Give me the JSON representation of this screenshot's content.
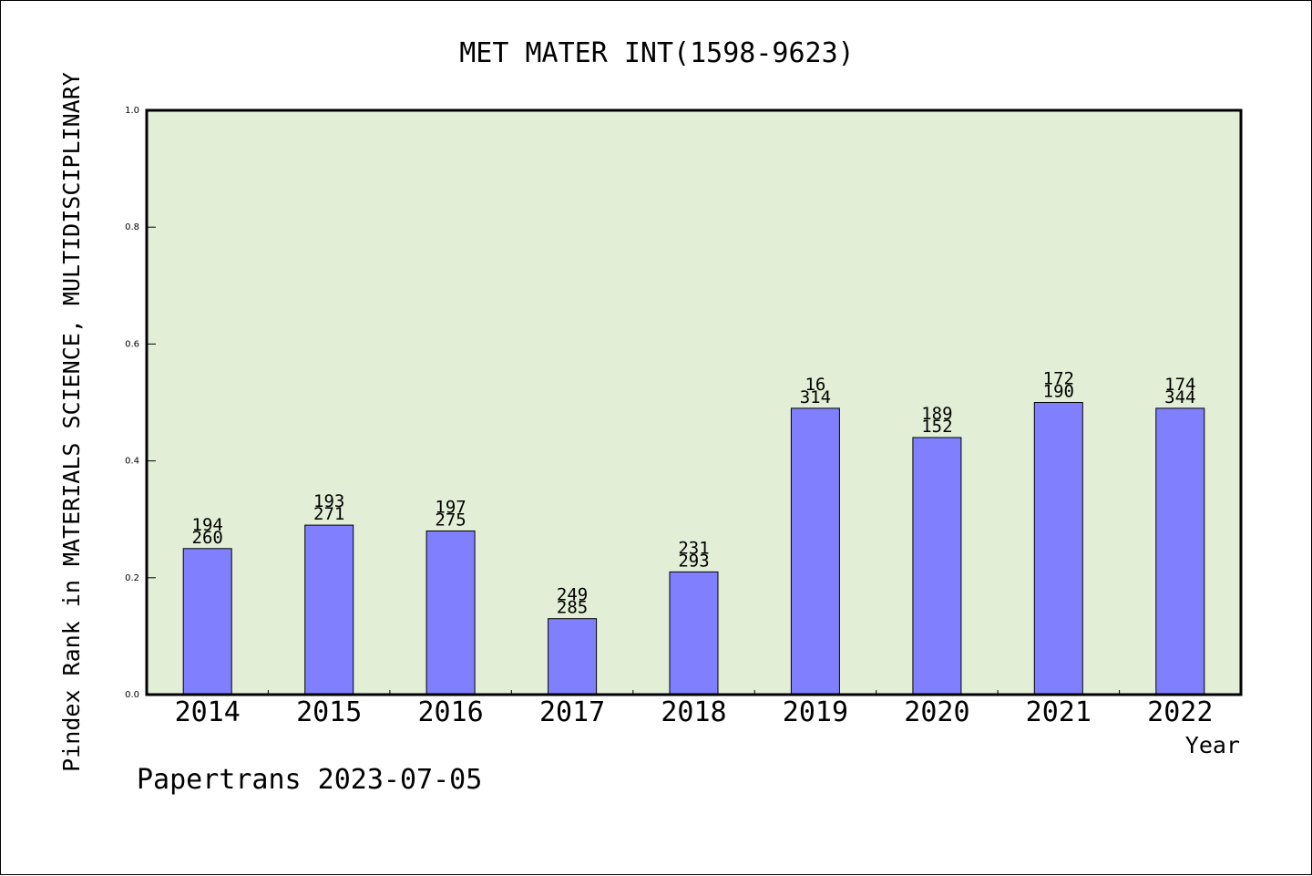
{
  "chart_data": {
    "type": "bar",
    "title": "MET MATER INT(1598-9623)",
    "ylabel": "Pindex Rank in MATERIALS SCIENCE, MULTIDISCIPLINARY",
    "xlabel": "Year",
    "footer": "Papertrans 2023-07-05",
    "categories": [
      "2014",
      "2015",
      "2016",
      "2017",
      "2018",
      "2019",
      "2020",
      "2021",
      "2022"
    ],
    "values": [
      0.25,
      0.29,
      0.28,
      0.13,
      0.21,
      0.49,
      0.44,
      0.5,
      0.49
    ],
    "label_top": [
      "194",
      "193",
      "197",
      "249",
      "231",
      "16",
      "189",
      "172",
      "174"
    ],
    "label_bottom": [
      "260",
      "271",
      "275",
      "285",
      "293",
      "314",
      "152",
      "190",
      "344"
    ],
    "ylim": [
      0,
      1.0
    ],
    "yticks": [
      "0.0",
      "0.2",
      "0.4",
      "0.6",
      "0.8",
      "1.0"
    ],
    "grid": false,
    "legend": "none",
    "colors": {
      "plot_background": "#e2efd6",
      "bar_fill": "#8080ff",
      "bar_stroke": "#000000",
      "frame": "#000000",
      "text": "#000000"
    }
  }
}
